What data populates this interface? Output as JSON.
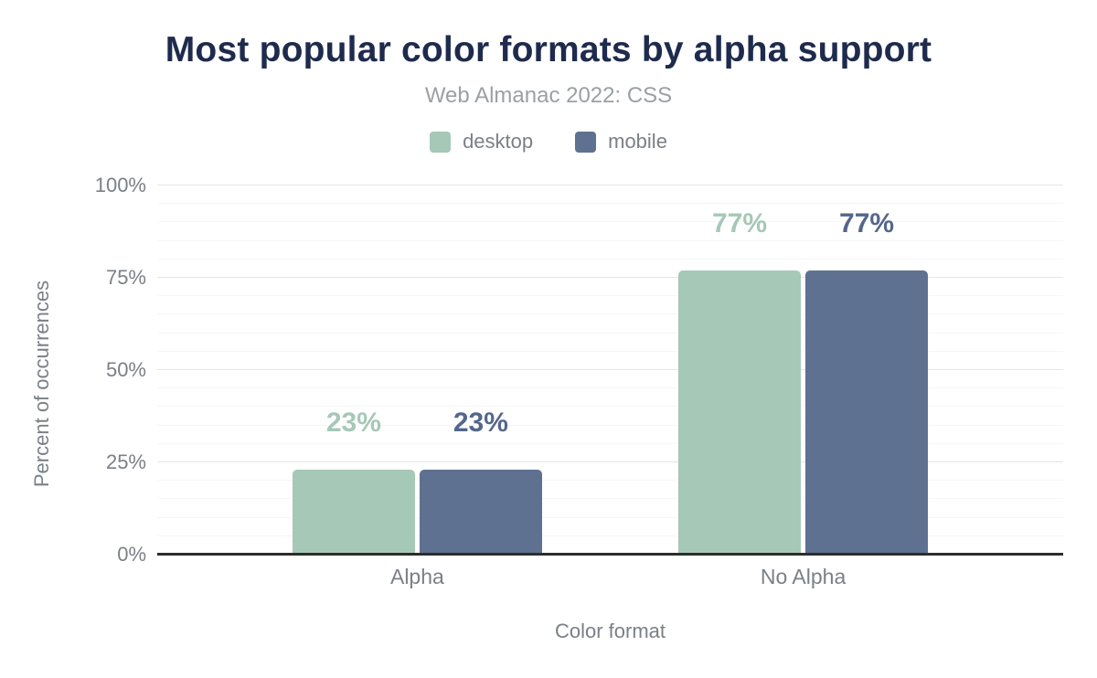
{
  "title": "Most popular color formats by alpha support",
  "subtitle": "Web Almanac 2022: CSS",
  "colors": {
    "title": "#1e2b4d",
    "subtitle": "#9aa0a6",
    "axis_text": "#7a8087",
    "grid_major": "#e5e5e5",
    "grid_minor": "#f6f6f6",
    "axis_line": "#2d2d2d",
    "desktop": "#a6c8b7",
    "mobile": "#5f7191",
    "desktop_label": "#a6c8b7",
    "mobile_label": "#54678a"
  },
  "legend": {
    "items": [
      {
        "label": "desktop",
        "color": "#a6c8b7"
      },
      {
        "label": "mobile",
        "color": "#5f7191"
      }
    ]
  },
  "chart_data": {
    "type": "bar",
    "categories": [
      "Alpha",
      "No Alpha"
    ],
    "series": [
      {
        "name": "desktop",
        "color": "#a6c8b7",
        "label_color": "#a6c8b7",
        "values": [
          23,
          77
        ],
        "labels": [
          "23%",
          "77%"
        ]
      },
      {
        "name": "mobile",
        "color": "#5f7191",
        "label_color": "#54678a",
        "values": [
          23,
          77
        ],
        "labels": [
          "23%",
          "77%"
        ]
      }
    ],
    "title": "Most popular color formats by alpha support",
    "subtitle": "Web Almanac 2022: CSS",
    "xlabel": "Color format",
    "ylabel": "Percent of occurrences",
    "ylim": [
      0,
      100
    ],
    "yticks": [
      0,
      25,
      50,
      75,
      100
    ],
    "ytick_labels": [
      "0%",
      "25%",
      "50%",
      "75%",
      "100%"
    ],
    "minor_grid_step": 5,
    "grid": true,
    "legend_position": "top"
  }
}
